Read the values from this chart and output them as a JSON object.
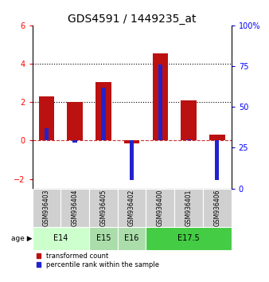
{
  "title": "GDS4591 / 1449235_at",
  "samples": [
    "GSM936403",
    "GSM936404",
    "GSM936405",
    "GSM936402",
    "GSM936400",
    "GSM936401",
    "GSM936406"
  ],
  "transformed_counts": [
    2.3,
    2.0,
    3.05,
    -0.15,
    4.55,
    2.1,
    0.3
  ],
  "percentile_right": [
    37,
    28,
    62,
    5,
    76,
    30,
    5
  ],
  "bar_color_red": "#bb1111",
  "bar_color_blue": "#2222cc",
  "ylim_left": [
    -2.5,
    6.0
  ],
  "ylim_right": [
    0,
    100
  ],
  "yticks_left": [
    -2,
    0,
    2,
    4,
    6
  ],
  "yticks_right": [
    0,
    25,
    50,
    75,
    100
  ],
  "bg_color": "#ffffff",
  "tick_label_fontsize": 7,
  "title_fontsize": 10,
  "red_bar_width": 0.55,
  "blue_bar_width": 0.15
}
